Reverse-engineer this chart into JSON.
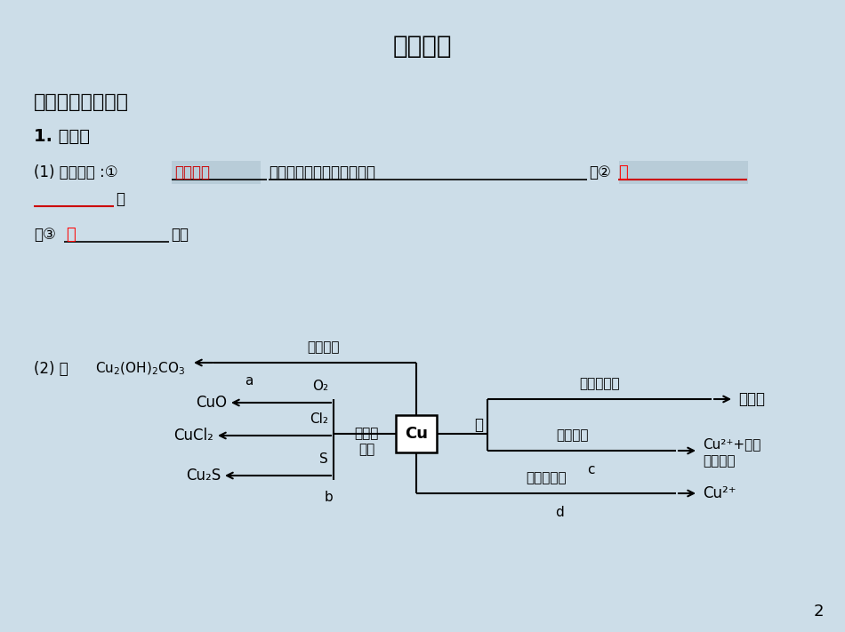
{
  "bg_color": "#ccdde8",
  "title": "教材研读",
  "title_fontsize": 20,
  "section1": "一、铜及其化合物",
  "section1_fontsize": 16,
  "subsection1": "1. 单质铜",
  "subsection1_fontsize": 14,
  "text_color": "#000000",
  "red_color": "#ff0000",
  "dark_red": "#cc0000",
  "blank_bg": "#c8d8e4",
  "page_num": "2"
}
